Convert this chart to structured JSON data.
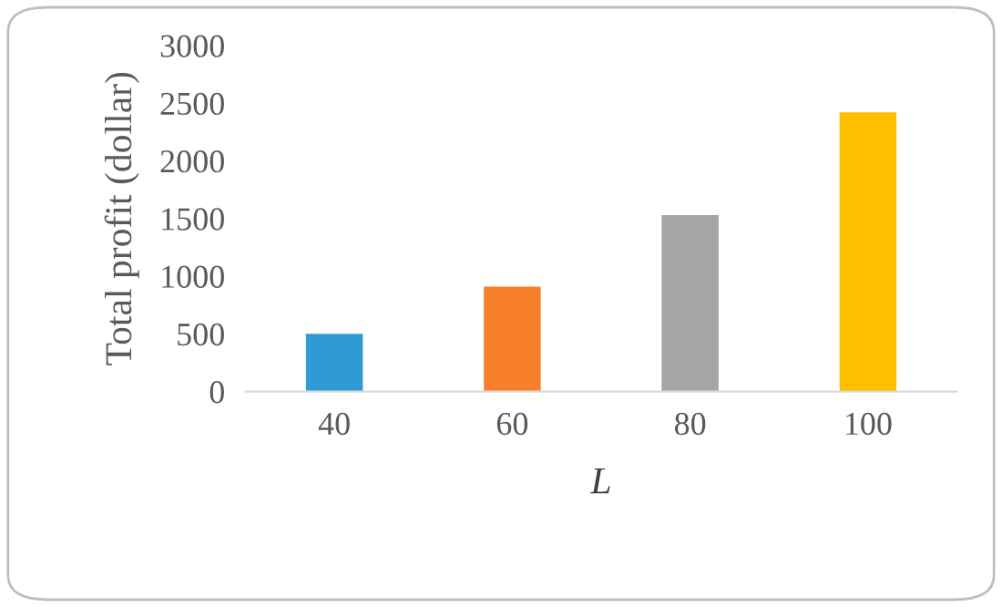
{
  "chart_data": {
    "type": "bar",
    "xlabel": "L",
    "ylabel": "Total profit (dollar)",
    "categories": [
      "40",
      "60",
      "80",
      "100"
    ],
    "values": [
      500,
      910,
      1530,
      2420
    ],
    "colors": [
      "#2e9bd6",
      "#f77f2b",
      "#a5a5a5",
      "#ffc000"
    ],
    "ylim": [
      0,
      3000
    ],
    "yticks": [
      0,
      500,
      1000,
      1500,
      2000,
      2500,
      3000
    ],
    "grid": false,
    "legend": false
  }
}
